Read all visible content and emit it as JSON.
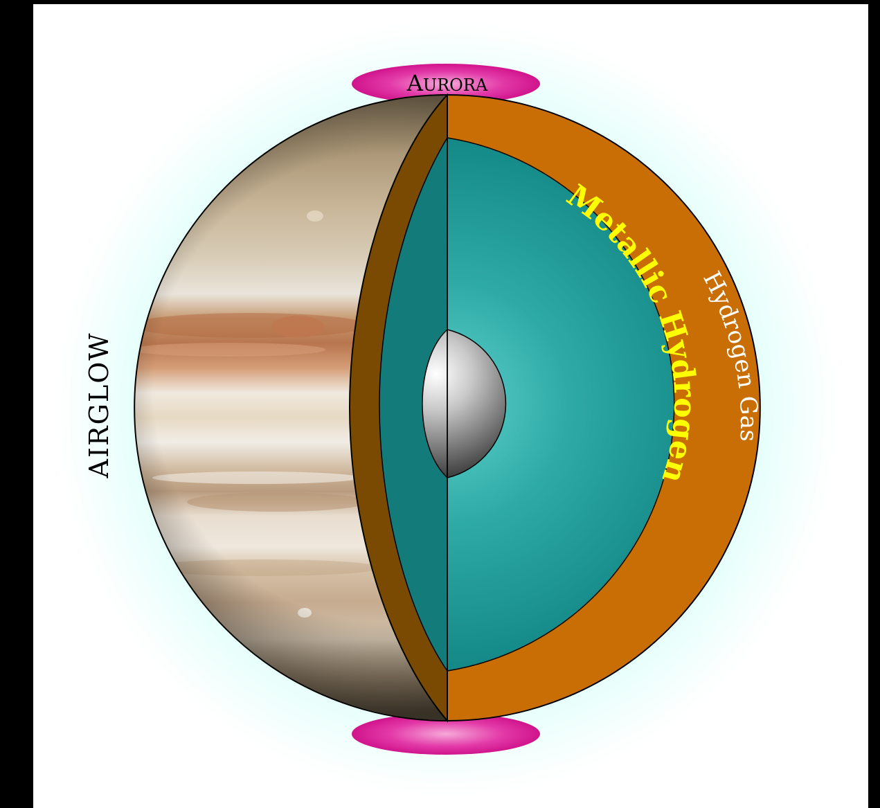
{
  "labels": {
    "airglow": "AIRGLOW",
    "aurora_first": "A",
    "aurora_rest": "URORA",
    "hydrogen_gas": "Hydrogen Gas",
    "metallic_hydrogen": "Metallic Hydrogen"
  },
  "colors": {
    "background": "#000000",
    "airglow_glow": "#c8fff6",
    "aurora": "#e0209a",
    "gas_layer": "#c86e05",
    "gas_layer_shadow": "#7a4a02",
    "metallic_layer": "#1b9a98",
    "metallic_layer_shadow": "#137c7b",
    "core": "#8a8a8a",
    "metallic_text": "#ffff00",
    "gas_text": "#ffffff"
  }
}
